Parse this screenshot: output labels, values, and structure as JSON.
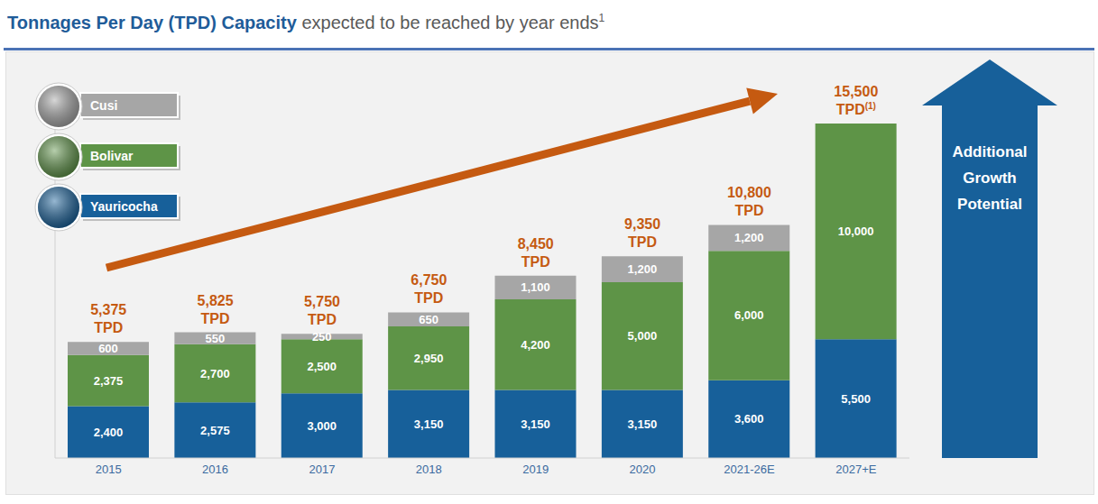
{
  "chart_data": {
    "type": "bar",
    "title": "Tonnages Per Day (TPD) Capacity",
    "subtitle": "expected to be reached by year ends",
    "title_note": "1",
    "categories": [
      "2015",
      "2016",
      "2017",
      "2018",
      "2019",
      "2020",
      "2021-26E",
      "2027+E"
    ],
    "series": [
      {
        "name": "Cusi",
        "color": "#a6a6a6",
        "values": [
          600,
          550,
          250,
          650,
          1100,
          1200,
          1200,
          null
        ],
        "value_labels": [
          "600",
          "550",
          "250",
          "650",
          "1,100",
          "1,200",
          "1,200",
          null
        ]
      },
      {
        "name": "Bolivar",
        "color": "#5e9447",
        "values": [
          2375,
          2700,
          2500,
          2950,
          4200,
          5000,
          6000,
          10000
        ],
        "value_labels": [
          "2,375",
          "2,700",
          "2,500",
          "2,950",
          "4,200",
          "5,000",
          "6,000",
          "10,000"
        ]
      },
      {
        "name": "Yauricocha",
        "color": "#17609a",
        "values": [
          2400,
          2575,
          3000,
          3150,
          3150,
          3150,
          3600,
          5500
        ],
        "value_labels": [
          "2,400",
          "2,575",
          "3,000",
          "3,150",
          "3,150",
          "3,150",
          "3,600",
          "5,500"
        ]
      }
    ],
    "totals": [
      5375,
      5825,
      5750,
      6750,
      8450,
      9350,
      10800,
      15500
    ],
    "total_labels": [
      "5,375",
      "5,825",
      "5,750",
      "6,750",
      "8,450",
      "9,350",
      "10,800",
      "15,500"
    ],
    "total_unit": "TPD",
    "total_notes": [
      null,
      null,
      null,
      null,
      null,
      null,
      null,
      "(1)"
    ],
    "annotation": "Additional Growth Potential",
    "ylim": [
      0,
      17000
    ],
    "yticks": [
      0,
      17000
    ],
    "stacked": true,
    "data_labels": true,
    "grid": false,
    "legend": "top-left",
    "tick_labels": "x"
  }
}
